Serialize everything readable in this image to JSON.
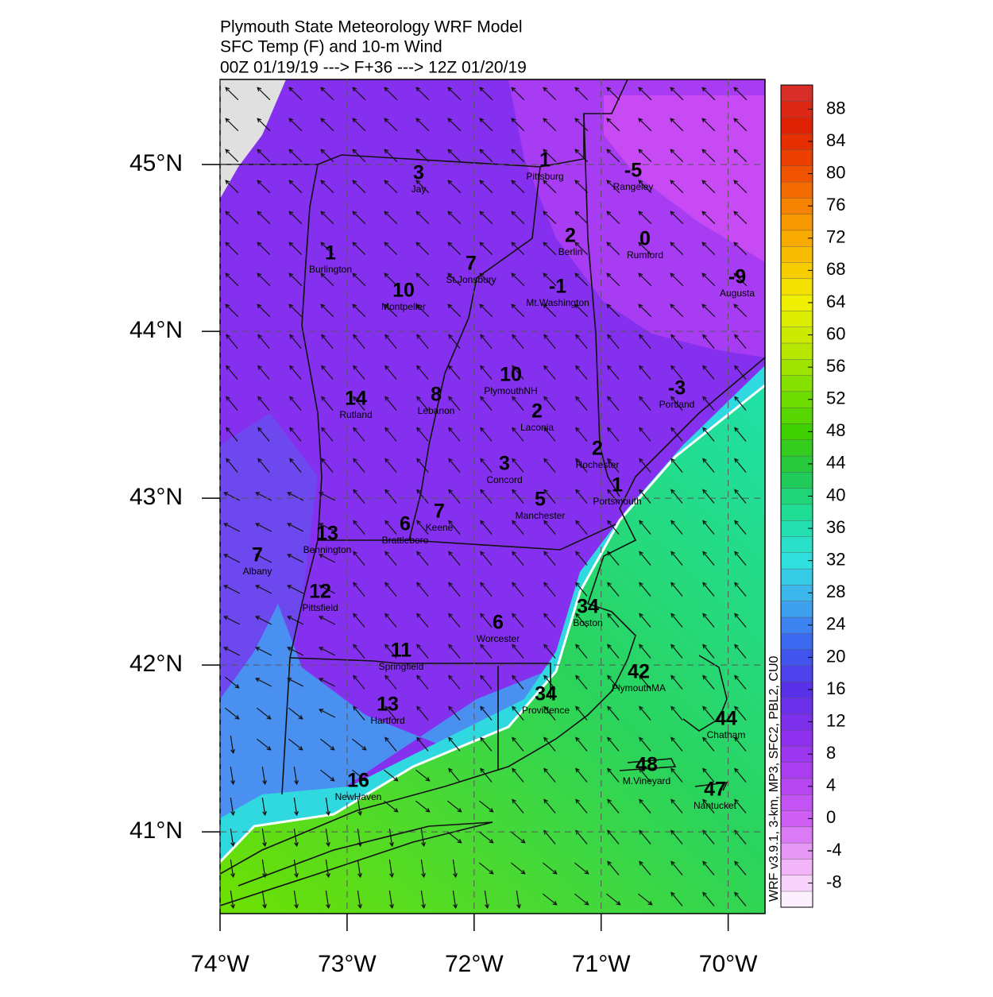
{
  "header": {
    "title": "Plymouth State Meteorology WRF Model",
    "subtitle": "SFC Temp (F) and 10-m Wind",
    "valid": "00Z 01/19/19 ---> F+36 ---> 12Z 01/20/19"
  },
  "map": {
    "xlim": [
      -74,
      -69.71
    ],
    "ylim": [
      40.51,
      45.51
    ],
    "xticks": [
      {
        "value": -74,
        "label": "74°W"
      },
      {
        "value": -73,
        "label": "73°W"
      },
      {
        "value": -72,
        "label": "72°W"
      },
      {
        "value": -71,
        "label": "71°W"
      },
      {
        "value": -70,
        "label": "70°W"
      }
    ],
    "yticks": [
      {
        "value": 45,
        "label": "45°N"
      },
      {
        "value": 44,
        "label": "44°N"
      },
      {
        "value": 43,
        "label": "43°N"
      },
      {
        "value": 42,
        "label": "42°N"
      },
      {
        "value": 41,
        "label": "41°N"
      }
    ],
    "stations": [
      {
        "value": 1,
        "name": "Pittsburg"
      },
      {
        "value": -5,
        "name": "Rangeley"
      },
      {
        "value": 3,
        "name": "Jay"
      },
      {
        "value": 2,
        "name": "Berlin"
      },
      {
        "value": 0,
        "name": "Rumford"
      },
      {
        "value": 1,
        "name": "Burlington"
      },
      {
        "value": 7,
        "name": "St.Jonsbury"
      },
      {
        "value": 10,
        "name": "Montpelier"
      },
      {
        "value": -1,
        "name": "Mt.Washington"
      },
      {
        "value": -9,
        "name": "Augusta"
      },
      {
        "value": 10,
        "name": "PlymouthNH"
      },
      {
        "value": -3,
        "name": "Portland"
      },
      {
        "value": 14,
        "name": "Rutland"
      },
      {
        "value": 8,
        "name": "Lebanon"
      },
      {
        "value": 2,
        "name": "Laconia"
      },
      {
        "value": 2,
        "name": "Rochester"
      },
      {
        "value": 3,
        "name": "Concord"
      },
      {
        "value": 1,
        "name": "Portsmouth"
      },
      {
        "value": 5,
        "name": "Manchester"
      },
      {
        "value": 7,
        "name": "Keene"
      },
      {
        "value": 6,
        "name": "Brattleboro"
      },
      {
        "value": 13,
        "name": "Bennington"
      },
      {
        "value": 7,
        "name": "Albany"
      },
      {
        "value": 12,
        "name": "Pittsfield"
      },
      {
        "value": 6,
        "name": "Worcester"
      },
      {
        "value": 34,
        "name": "Boston"
      },
      {
        "value": 11,
        "name": "Springfield"
      },
      {
        "value": 42,
        "name": "PlymouthMA"
      },
      {
        "value": 13,
        "name": "Hartford"
      },
      {
        "value": 34,
        "name": "Providence"
      },
      {
        "value": 44,
        "name": "Chatham"
      },
      {
        "value": 48,
        "name": "M.Vineyard"
      },
      {
        "value": 16,
        "name": "NewHaven"
      },
      {
        "value": 47,
        "name": "Nantucket"
      }
    ]
  },
  "colorbar": {
    "lim": [
      -11,
      91
    ],
    "ticks": [
      88,
      84,
      80,
      76,
      72,
      68,
      64,
      60,
      56,
      52,
      48,
      44,
      40,
      36,
      32,
      28,
      24,
      20,
      16,
      12,
      8,
      4,
      0,
      -4,
      -8
    ]
  },
  "footnote": "WRF v3.9.1, 3-km, MP3, SFC2, PBL2, CU0"
}
